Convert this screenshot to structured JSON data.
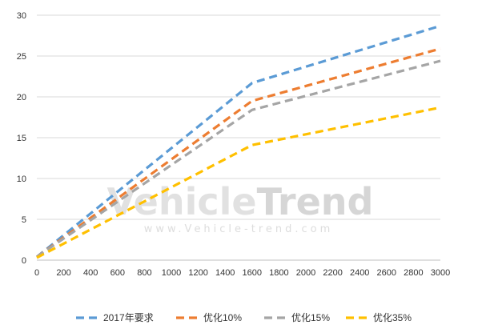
{
  "chart_data": {
    "type": "line",
    "x": [
      0,
      1600,
      3000
    ],
    "x_ticks": [
      0,
      200,
      400,
      600,
      800,
      1000,
      1200,
      1400,
      1600,
      1800,
      2000,
      2200,
      2400,
      2600,
      2800,
      3000
    ],
    "y_ticks": [
      0,
      5,
      10,
      15,
      20,
      25,
      30
    ],
    "xlim": [
      0,
      3000
    ],
    "ylim": [
      0,
      30
    ],
    "grid": "horizontal",
    "legend": "bottom",
    "line_style": "dashed",
    "series": [
      {
        "name": "2017年要求",
        "color": "#5b9bd5",
        "x": [
          0,
          1600,
          3000
        ],
        "values": [
          0.4,
          21.7,
          28.7
        ]
      },
      {
        "name": "优化10%",
        "color": "#ed7d31",
        "x": [
          0,
          1600,
          3000
        ],
        "values": [
          0.4,
          19.5,
          25.9
        ]
      },
      {
        "name": "优化15%",
        "color": "#a5a5a5",
        "x": [
          0,
          1600,
          3000
        ],
        "values": [
          0.4,
          18.4,
          24.4
        ]
      },
      {
        "name": "优化35%",
        "color": "#ffc000",
        "x": [
          0,
          1600,
          3000
        ],
        "values": [
          0.3,
          14.1,
          18.7
        ]
      }
    ]
  },
  "watermark": {
    "brand_part1": "Vehicle",
    "brand_part2": "Trend",
    "url": "www.Vehicle-trend.com"
  }
}
